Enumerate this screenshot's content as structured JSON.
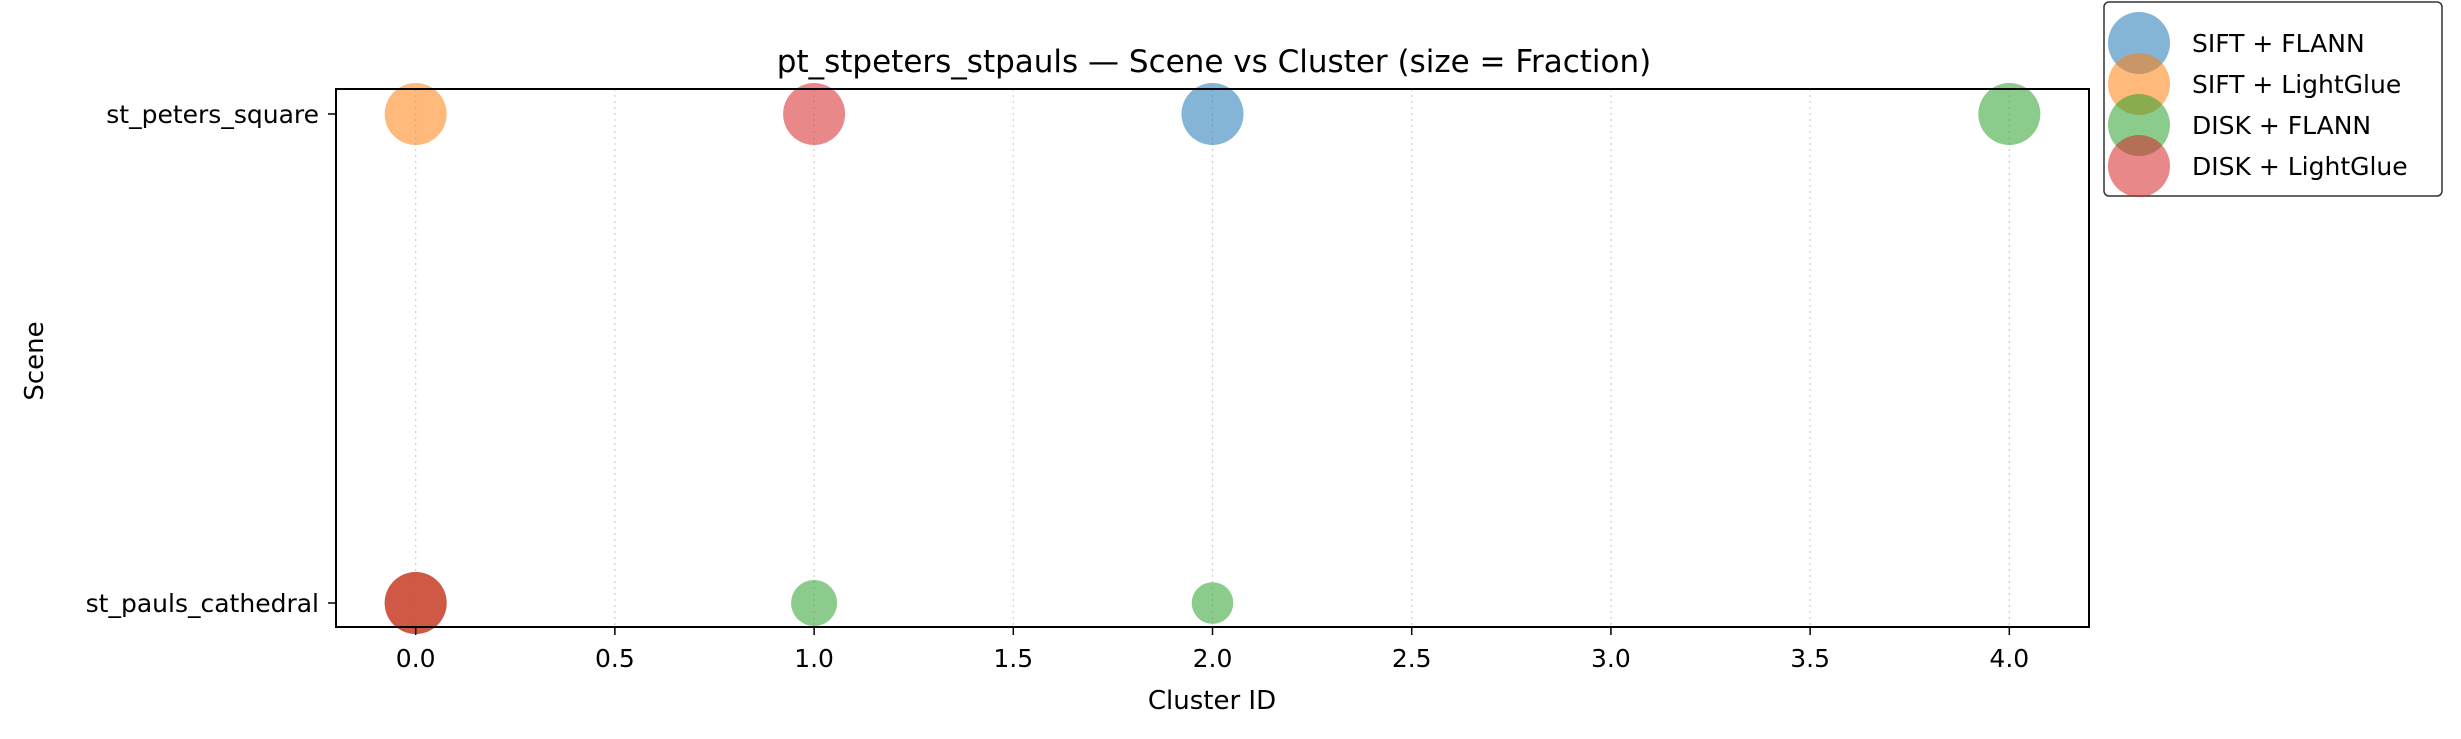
{
  "chart_data": {
    "type": "scatter",
    "title": "pt_stpeters_stpauls — Scene vs Cluster (size = Fraction)",
    "xlabel": "Cluster ID",
    "ylabel": "Scene",
    "xlim": [
      -0.2,
      4.2
    ],
    "x_ticks": [
      0.0,
      0.5,
      1.0,
      1.5,
      2.0,
      2.5,
      3.0,
      3.5,
      4.0
    ],
    "x_tick_labels": [
      "0.0",
      "0.5",
      "1.0",
      "1.5",
      "2.0",
      "2.5",
      "3.0",
      "3.5",
      "4.0"
    ],
    "y_categories": [
      "st_peters_square",
      "st_pauls_cathedral"
    ],
    "x_grid": true,
    "y_grid": false,
    "legend_position": "upper-right-outside",
    "size_encoding": "Fraction",
    "series": [
      {
        "name": "SIFT + FLANN",
        "color": "#1f77b4",
        "points": [
          {
            "x": 2,
            "y": "st_peters_square",
            "size": 1.0
          },
          {
            "x": 0,
            "y": "st_pauls_cathedral",
            "size": 1.0
          }
        ]
      },
      {
        "name": "SIFT + LightGlue",
        "color": "#ff7f0e",
        "points": [
          {
            "x": 0,
            "y": "st_peters_square",
            "size": 1.0
          },
          {
            "x": 0,
            "y": "st_pauls_cathedral",
            "size": 1.0
          }
        ]
      },
      {
        "name": "DISK + FLANN",
        "color": "#2ca02c",
        "points": [
          {
            "x": 4,
            "y": "st_peters_square",
            "size": 1.0
          },
          {
            "x": 1,
            "y": "st_pauls_cathedral",
            "size": 0.55
          },
          {
            "x": 2,
            "y": "st_pauls_cathedral",
            "size": 0.45
          }
        ]
      },
      {
        "name": "DISK + LightGlue",
        "color": "#d62728",
        "points": [
          {
            "x": 1,
            "y": "st_peters_square",
            "size": 1.0
          },
          {
            "x": 0,
            "y": "st_pauls_cathedral",
            "size": 1.0
          }
        ]
      }
    ]
  }
}
